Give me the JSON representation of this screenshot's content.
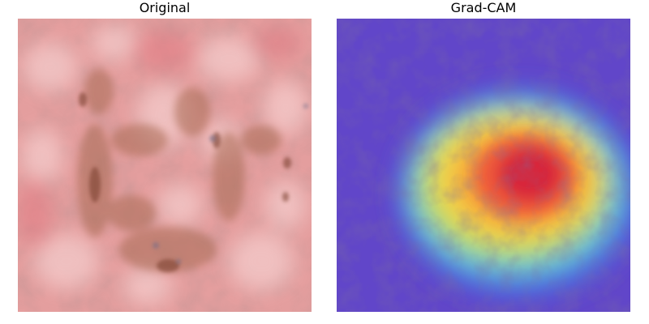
{
  "panels": [
    {
      "title": "Original"
    },
    {
      "title": "Grad-CAM"
    }
  ]
}
